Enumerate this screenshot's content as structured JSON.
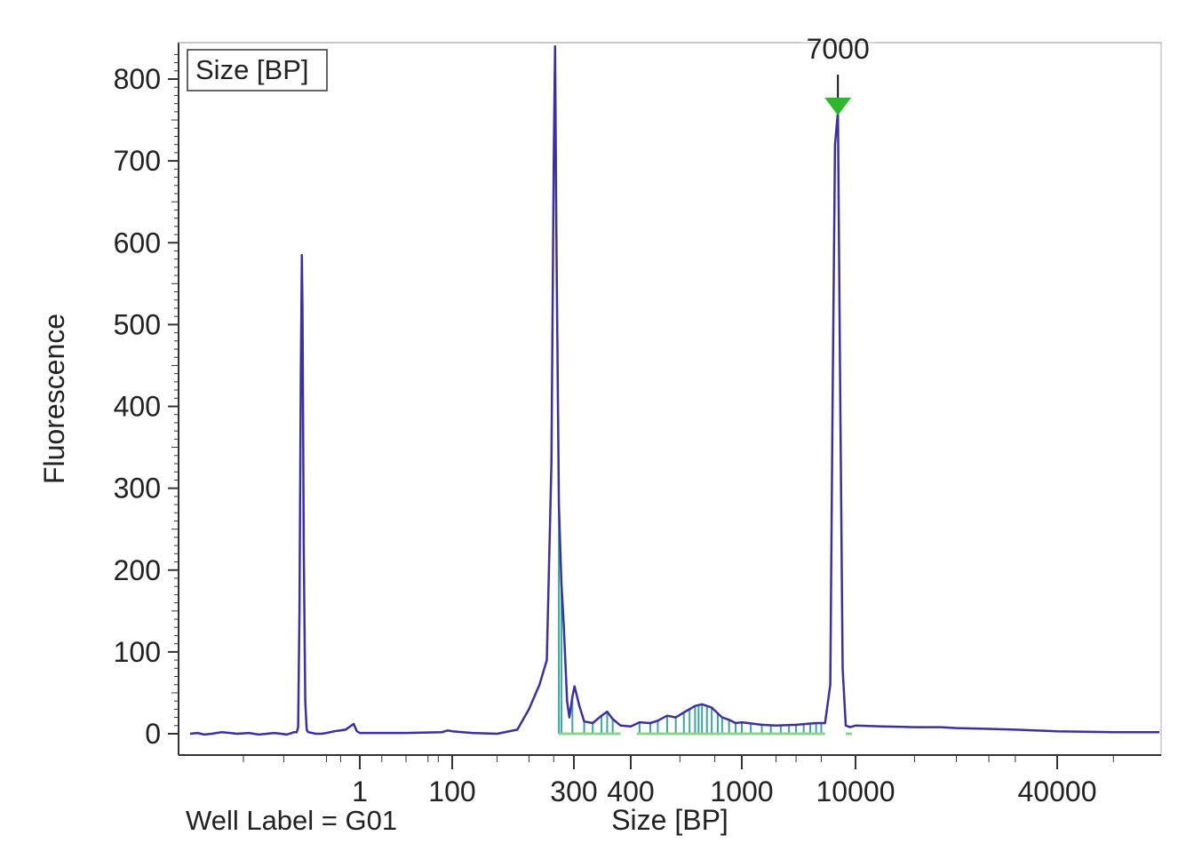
{
  "chart_data": {
    "type": "line",
    "title": "",
    "xlabel": "Size [BP]",
    "ylabel": "Fluorescence",
    "legend": {
      "entries": [
        "Size [BP]"
      ],
      "placement": "top-left"
    },
    "footer_label": "Well Label = G01",
    "ylim": [
      0,
      840
    ],
    "y_ticks": [
      0,
      100,
      200,
      300,
      400,
      500,
      600,
      700,
      800
    ],
    "x_ticks": [
      "1",
      "100",
      "300",
      "400",
      "1000",
      "10000",
      "40000"
    ],
    "x_scale": "non-linear (sizing ladder)",
    "grid": false,
    "colors": {
      "trace": "#3c2fa0",
      "peak_fill": "#3aa7a0",
      "baseline": "#8fd18f",
      "marker": "#2fb82f"
    },
    "marker": {
      "label": "7000",
      "x": 7000,
      "y": 760
    },
    "series": [
      {
        "points": [
          [
            0.02,
            0
          ],
          [
            0.0227,
            1
          ],
          [
            0.0255,
            -1
          ],
          [
            0.029,
            0
          ],
          [
            0.0345,
            2
          ],
          [
            0.045,
            0
          ],
          [
            0.055,
            1
          ],
          [
            0.065,
            -1
          ],
          [
            0.075,
            0
          ],
          [
            0.085,
            1
          ],
          [
            0.095,
            0
          ],
          [
            0.105,
            -1
          ],
          [
            0.115,
            1
          ],
          [
            0.12,
            2
          ],
          [
            0.125,
            2
          ],
          [
            0.128,
            8
          ],
          [
            0.131,
            150
          ],
          [
            0.134,
            440
          ],
          [
            0.1364,
            585
          ],
          [
            0.138,
            520
          ],
          [
            0.141,
            230
          ],
          [
            0.1445,
            40
          ],
          [
            0.1482,
            5
          ],
          [
            0.1545,
            2
          ],
          [
            0.18,
            1
          ],
          [
            0.2,
            0
          ],
          [
            0.25,
            0
          ],
          [
            0.3,
            1
          ],
          [
            0.4,
            3
          ],
          [
            0.6,
            5
          ],
          [
            0.8,
            12
          ],
          [
            0.9,
            3
          ],
          [
            1,
            1
          ],
          [
            10,
            1
          ],
          [
            60,
            2
          ],
          [
            80,
            4
          ],
          [
            100,
            3
          ],
          [
            120,
            1
          ],
          [
            150,
            0
          ],
          [
            180,
            5
          ],
          [
            200,
            30
          ],
          [
            220,
            60
          ],
          [
            235,
            90
          ],
          [
            245,
            330
          ],
          [
            250,
            700
          ],
          [
            253,
            840
          ],
          [
            256,
            620
          ],
          [
            262,
            280
          ],
          [
            268,
            185
          ],
          [
            274,
            130
          ],
          [
            282,
            40
          ],
          [
            288,
            20
          ],
          [
            296,
            45
          ],
          [
            301,
            58
          ],
          [
            308,
            35
          ],
          [
            316,
            15
          ],
          [
            330,
            13
          ],
          [
            345,
            22
          ],
          [
            355,
            27
          ],
          [
            365,
            18
          ],
          [
            380,
            10
          ],
          [
            400,
            9
          ],
          [
            430,
            14
          ],
          [
            470,
            13
          ],
          [
            500,
            16
          ],
          [
            540,
            22
          ],
          [
            580,
            20
          ],
          [
            620,
            26
          ],
          [
            680,
            34
          ],
          [
            720,
            36
          ],
          [
            780,
            32
          ],
          [
            850,
            20
          ],
          [
            900,
            17
          ],
          [
            950,
            13
          ],
          [
            1000,
            14
          ],
          [
            1500,
            11
          ],
          [
            2000,
            10
          ],
          [
            3000,
            11
          ],
          [
            4500,
            13
          ],
          [
            5400,
            13
          ],
          [
            6000,
            60
          ],
          [
            6300,
            420
          ],
          [
            6600,
            720
          ],
          [
            7000,
            760
          ],
          [
            7300,
            450
          ],
          [
            7700,
            80
          ],
          [
            8200,
            10
          ],
          [
            9000,
            8
          ],
          [
            10000,
            10
          ],
          [
            12000,
            9
          ],
          [
            15000,
            8
          ],
          [
            18000,
            8
          ],
          [
            20000,
            7
          ],
          [
            25000,
            6
          ],
          [
            30000,
            5
          ],
          [
            40000,
            3
          ],
          [
            50000,
            2
          ],
          [
            60000,
            2
          ]
        ]
      }
    ]
  }
}
